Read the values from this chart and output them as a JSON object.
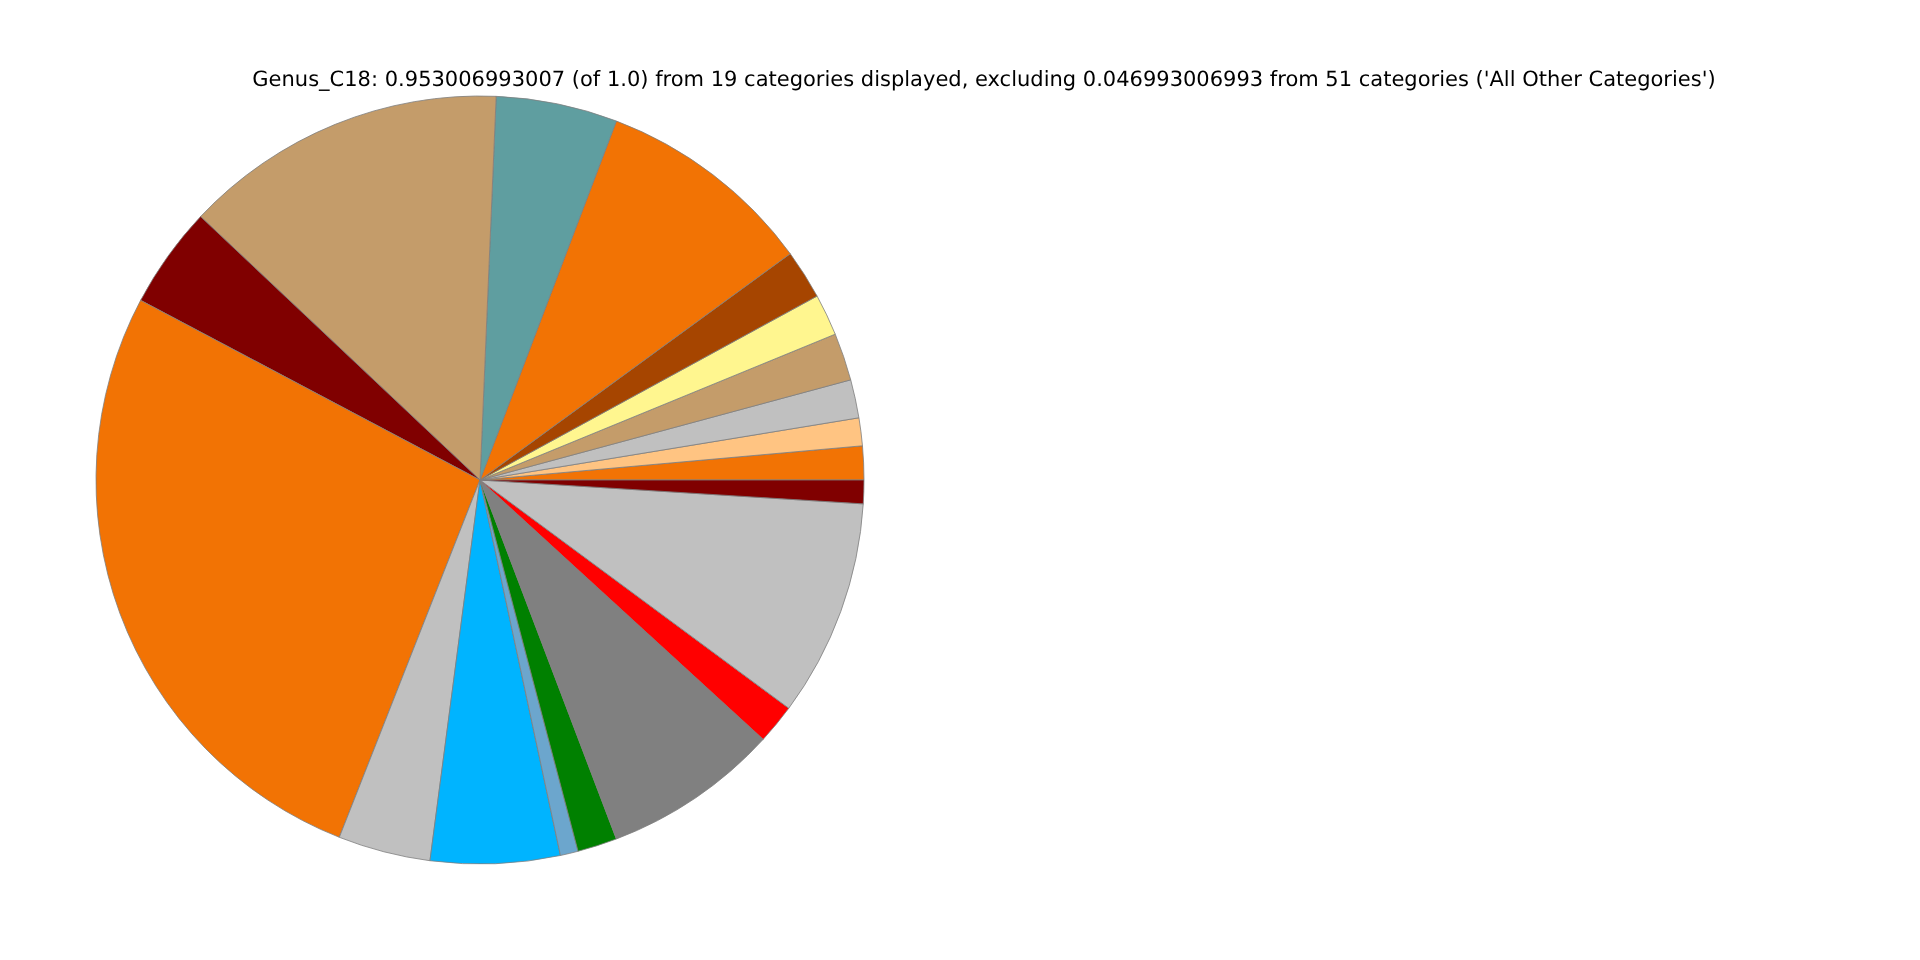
{
  "chart_data": {
    "type": "pie",
    "title": "Genus_C18: 0.953006993007 (of 1.0) from 19 categories displayed, excluding 0.046993006993 from 51 categories ('All Other Categories')",
    "categories": [
      null,
      null,
      null,
      null,
      null,
      null,
      null,
      null,
      null,
      null,
      null,
      null,
      null,
      null,
      null,
      null,
      null,
      null,
      null
    ],
    "values": [
      1.42,
      1.17,
      1.61,
      2.0,
      1.75,
      2.08,
      9.19,
      5.11,
      13.64,
      4.28,
      26.78,
      3.89,
      5.44,
      0.75,
      1.67,
      7.42,
      1.67,
      9.14,
      0.99
    ],
    "colors": [
      "#f27304",
      "#ffc482",
      "#c0c0c0",
      "#c49c6a",
      "#fff68f",
      "#a64500",
      "#f27304",
      "#5f9ea0",
      "#c49c6a",
      "#800000",
      "#f27304",
      "#c0c0c0",
      "#00b4ff",
      "#6ca6cd",
      "#008000",
      "#808080",
      "#ff0000",
      "#c0c0c0",
      "#800000"
    ]
  }
}
